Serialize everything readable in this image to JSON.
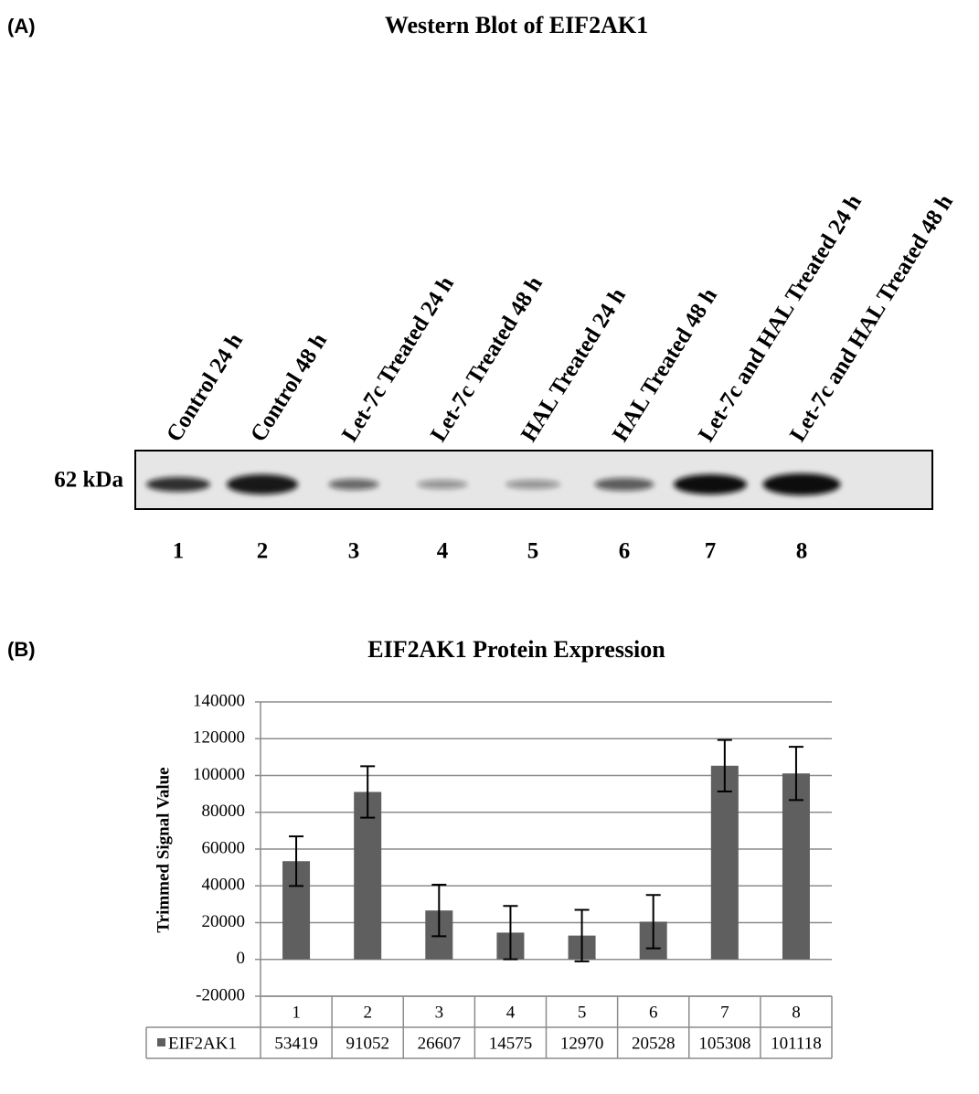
{
  "panel_a": {
    "label": "(A)",
    "title": "Western Blot of EIF2AK1",
    "lanes": [
      "Control 24 h",
      "Control 48 h",
      "Let-7c Treated 24 h",
      "Let-7c Treated 48 h",
      "HAL Treated 24 h",
      "HAL Treated 48 h",
      "Let-7c and HAL Treated 24 h",
      "Let-7c and HAL Treated 48 h"
    ],
    "marker": "62 kDa",
    "lane_numbers": [
      "1",
      "2",
      "3",
      "4",
      "5",
      "6",
      "7",
      "8"
    ]
  },
  "panel_b": {
    "label": "(B)"
  },
  "chart_data": {
    "type": "bar",
    "title": "EIF2AK1 Protein Expression",
    "y_label": "Trimmed Signal Value",
    "categories": [
      "1",
      "2",
      "3",
      "4",
      "5",
      "6",
      "7",
      "8"
    ],
    "series": [
      {
        "name": "EIF2AK1",
        "color": "#5f5f5f",
        "values": [
          53419,
          91052,
          26607,
          14575,
          12970,
          20528,
          105308,
          101118
        ],
        "errors": [
          13500,
          14000,
          14000,
          14500,
          14000,
          14500,
          14000,
          14500
        ]
      }
    ],
    "ylim": [
      -20000,
      140000
    ],
    "yticks": [
      -20000,
      0,
      20000,
      40000,
      60000,
      80000,
      100000,
      120000,
      140000
    ],
    "grid": true,
    "data_table": true
  }
}
